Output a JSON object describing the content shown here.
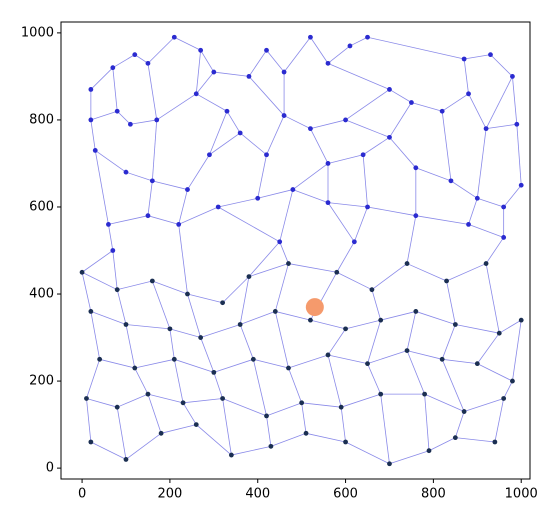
{
  "chart_data": {
    "type": "network",
    "xlim": [
      -48,
      1020
    ],
    "ylim": [
      -25,
      1025
    ],
    "xticks": [
      0,
      200,
      400,
      600,
      800,
      1000
    ],
    "yticks": [
      0,
      200,
      400,
      600,
      800,
      1000
    ],
    "edge_color": "#3a3ad8",
    "series": [
      {
        "color": "#2b2bd0",
        "x": [
          20,
          70,
          120,
          150,
          20,
          80,
          110,
          170,
          210,
          270,
          300,
          260,
          330,
          380,
          420,
          460,
          520,
          560,
          610,
          650,
          700,
          750,
          820,
          880,
          930,
          980,
          990,
          920,
          870,
          30,
          100,
          160,
          240,
          290,
          360,
          420,
          460,
          520,
          600,
          560,
          640,
          700,
          760,
          840,
          900,
          960,
          1000,
          60,
          150,
          220,
          310,
          400,
          480,
          560,
          650,
          760,
          880,
          960,
          70,
          450,
          620
        ],
        "y": [
          870,
          920,
          950,
          930,
          800,
          820,
          790,
          800,
          990,
          960,
          910,
          860,
          820,
          900,
          960,
          910,
          990,
          930,
          970,
          990,
          870,
          840,
          820,
          860,
          950,
          900,
          790,
          780,
          940,
          730,
          680,
          660,
          640,
          720,
          770,
          720,
          810,
          780,
          800,
          700,
          720,
          760,
          690,
          660,
          620,
          600,
          650,
          560,
          580,
          560,
          600,
          620,
          640,
          610,
          600,
          580,
          560,
          530,
          500,
          520,
          520
        ]
      },
      {
        "color": "#1b2f52",
        "x": [
          0,
          80,
          160,
          240,
          320,
          380,
          470,
          580,
          660,
          740,
          830,
          920,
          20,
          100,
          200,
          270,
          360,
          440,
          520,
          600,
          680,
          760,
          850,
          950,
          1000,
          40,
          120,
          210,
          300,
          390,
          470,
          560,
          650,
          740,
          820,
          900,
          980,
          10,
          80,
          150,
          230,
          320,
          420,
          500,
          590,
          680,
          780,
          870,
          960,
          20,
          100,
          180,
          260,
          340,
          430,
          510,
          600,
          700,
          790,
          850,
          940
        ],
        "y": [
          450,
          410,
          430,
          400,
          380,
          440,
          470,
          450,
          410,
          470,
          430,
          470,
          360,
          330,
          320,
          300,
          330,
          360,
          340,
          320,
          340,
          360,
          330,
          310,
          340,
          250,
          230,
          250,
          220,
          250,
          230,
          260,
          240,
          270,
          250,
          240,
          200,
          160,
          140,
          170,
          150,
          160,
          120,
          150,
          140,
          170,
          170,
          130,
          160,
          60,
          20,
          80,
          100,
          30,
          50,
          80,
          60,
          10,
          40,
          70,
          60
        ]
      }
    ],
    "edges": [
      [
        0,
        1
      ],
      [
        1,
        2
      ],
      [
        2,
        3
      ],
      [
        0,
        4
      ],
      [
        4,
        5
      ],
      [
        5,
        6
      ],
      [
        6,
        7
      ],
      [
        1,
        5
      ],
      [
        3,
        7
      ],
      [
        3,
        8
      ],
      [
        8,
        9
      ],
      [
        9,
        10
      ],
      [
        10,
        11
      ],
      [
        11,
        7
      ],
      [
        11,
        12
      ],
      [
        10,
        13
      ],
      [
        13,
        14
      ],
      [
        14,
        15
      ],
      [
        15,
        16
      ],
      [
        16,
        17
      ],
      [
        17,
        18
      ],
      [
        18,
        19
      ],
      [
        19,
        28
      ],
      [
        17,
        20
      ],
      [
        20,
        21
      ],
      [
        21,
        22
      ],
      [
        22,
        23
      ],
      [
        23,
        28
      ],
      [
        28,
        24
      ],
      [
        24,
        25
      ],
      [
        25,
        26
      ],
      [
        26,
        27
      ],
      [
        27,
        23
      ],
      [
        4,
        29
      ],
      [
        29,
        30
      ],
      [
        30,
        31
      ],
      [
        31,
        7
      ],
      [
        31,
        32
      ],
      [
        32,
        33
      ],
      [
        33,
        12
      ],
      [
        12,
        34
      ],
      [
        34,
        35
      ],
      [
        35,
        36
      ],
      [
        36,
        15
      ],
      [
        36,
        37
      ],
      [
        37,
        38
      ],
      [
        38,
        20
      ],
      [
        37,
        39
      ],
      [
        39,
        40
      ],
      [
        40,
        41
      ],
      [
        41,
        21
      ],
      [
        41,
        42
      ],
      [
        42,
        43
      ],
      [
        43,
        22
      ],
      [
        43,
        44
      ],
      [
        44,
        45
      ],
      [
        45,
        46
      ],
      [
        46,
        26
      ],
      [
        44,
        27
      ],
      [
        29,
        47
      ],
      [
        47,
        48
      ],
      [
        48,
        31
      ],
      [
        48,
        49
      ],
      [
        49,
        32
      ],
      [
        49,
        50
      ],
      [
        50,
        51
      ],
      [
        51,
        35
      ],
      [
        51,
        52
      ],
      [
        52,
        53
      ],
      [
        53,
        39
      ],
      [
        53,
        54
      ],
      [
        54,
        40
      ],
      [
        54,
        55
      ],
      [
        55,
        42
      ],
      [
        55,
        56
      ],
      [
        56,
        44
      ],
      [
        56,
        57
      ],
      [
        57,
        45
      ],
      [
        47,
        58
      ],
      [
        58,
        61
      ],
      [
        50,
        59
      ],
      [
        59,
        52
      ],
      [
        59,
        67
      ],
      [
        53,
        60
      ],
      [
        60,
        54
      ],
      [
        60,
        68
      ],
      [
        33,
        34
      ],
      [
        13,
        36
      ],
      [
        38,
        41
      ],
      [
        25,
        27
      ],
      [
        9,
        11
      ],
      [
        52,
        39
      ],
      [
        61,
        62
      ],
      [
        62,
        63
      ],
      [
        63,
        64
      ],
      [
        64,
        65
      ],
      [
        65,
        66
      ],
      [
        66,
        67
      ],
      [
        67,
        68
      ],
      [
        68,
        69
      ],
      [
        69,
        70
      ],
      [
        70,
        71
      ],
      [
        71,
        72
      ],
      [
        72,
        57
      ],
      [
        70,
        55
      ],
      [
        61,
        73
      ],
      [
        73,
        74
      ],
      [
        74,
        75
      ],
      [
        75,
        76
      ],
      [
        76,
        77
      ],
      [
        77,
        78
      ],
      [
        78,
        79
      ],
      [
        79,
        80
      ],
      [
        80,
        81
      ],
      [
        81,
        82
      ],
      [
        82,
        83
      ],
      [
        83,
        84
      ],
      [
        84,
        85
      ],
      [
        62,
        74
      ],
      [
        63,
        75
      ],
      [
        64,
        76
      ],
      [
        66,
        77
      ],
      [
        67,
        78
      ],
      [
        68,
        79
      ],
      [
        69,
        81
      ],
      [
        71,
        83
      ],
      [
        72,
        84
      ],
      [
        73,
        86
      ],
      [
        86,
        87
      ],
      [
        87,
        88
      ],
      [
        88,
        89
      ],
      [
        89,
        90
      ],
      [
        90,
        91
      ],
      [
        91,
        92
      ],
      [
        92,
        93
      ],
      [
        93,
        94
      ],
      [
        94,
        95
      ],
      [
        95,
        96
      ],
      [
        96,
        97
      ],
      [
        74,
        87
      ],
      [
        75,
        88
      ],
      [
        76,
        89
      ],
      [
        77,
        90
      ],
      [
        78,
        91
      ],
      [
        80,
        92
      ],
      [
        81,
        93
      ],
      [
        82,
        94
      ],
      [
        83,
        95
      ],
      [
        84,
        96
      ],
      [
        85,
        97
      ],
      [
        86,
        98
      ],
      [
        98,
        99
      ],
      [
        99,
        100
      ],
      [
        100,
        101
      ],
      [
        101,
        102
      ],
      [
        102,
        103
      ],
      [
        103,
        104
      ],
      [
        104,
        105
      ],
      [
        105,
        106
      ],
      [
        106,
        107
      ],
      [
        107,
        108
      ],
      [
        108,
        109
      ],
      [
        87,
        100
      ],
      [
        88,
        101
      ],
      [
        89,
        102
      ],
      [
        90,
        103
      ],
      [
        91,
        104
      ],
      [
        92,
        105
      ],
      [
        93,
        106
      ],
      [
        94,
        107
      ],
      [
        95,
        108
      ],
      [
        97,
        109
      ],
      [
        98,
        110
      ],
      [
        110,
        111
      ],
      [
        111,
        112
      ],
      [
        112,
        113
      ],
      [
        113,
        114
      ],
      [
        114,
        115
      ],
      [
        115,
        116
      ],
      [
        116,
        117
      ],
      [
        117,
        118
      ],
      [
        118,
        119
      ],
      [
        119,
        120
      ],
      [
        120,
        121
      ],
      [
        99,
        111
      ],
      [
        100,
        112
      ],
      [
        101,
        113
      ],
      [
        102,
        114
      ],
      [
        103,
        115
      ],
      [
        104,
        116
      ],
      [
        105,
        117
      ],
      [
        106,
        118
      ],
      [
        107,
        119
      ],
      [
        108,
        120
      ],
      [
        109,
        121
      ],
      [
        49,
        64
      ],
      [
        58,
        62
      ],
      [
        59,
        66
      ]
    ],
    "highlight": {
      "x": 530,
      "y": 370,
      "color": "#f59a6c"
    }
  }
}
